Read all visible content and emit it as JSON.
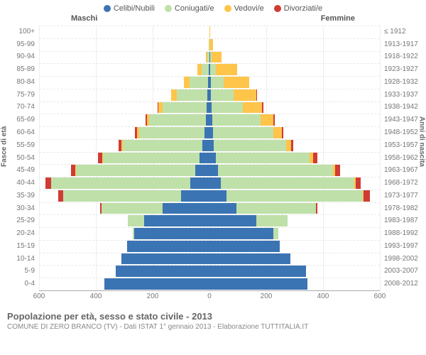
{
  "legend": [
    {
      "label": "Celibi/Nubili",
      "color": "#3b74b3"
    },
    {
      "label": "Coniugati/e",
      "color": "#bfe0a8"
    },
    {
      "label": "Vedovi/e",
      "color": "#ffc54a"
    },
    {
      "label": "Divorziati/e",
      "color": "#d03b33"
    }
  ],
  "header": {
    "maschi": "Maschi",
    "femmine": "Femmine"
  },
  "axisTitles": {
    "left": "Fasce di età",
    "right": "Anni di nascita"
  },
  "footer": {
    "title": "Popolazione per età, sesso e stato civile - 2013",
    "sub": "COMUNE DI ZERO BRANCO (TV) - Dati ISTAT 1° gennaio 2013 - Elaborazione TUTTITALIA.IT"
  },
  "xAxis": {
    "max": 600,
    "ticks": [
      600,
      400,
      200,
      0,
      200,
      400,
      600
    ]
  },
  "ageGroups": [
    "0-4",
    "5-9",
    "10-14",
    "15-19",
    "20-24",
    "25-29",
    "30-34",
    "35-39",
    "40-44",
    "45-49",
    "50-54",
    "55-59",
    "60-64",
    "65-69",
    "70-74",
    "75-79",
    "80-84",
    "85-89",
    "90-94",
    "95-99",
    "100+"
  ],
  "birthYears": [
    "2008-2012",
    "2003-2007",
    "1998-2002",
    "1993-1997",
    "1988-1992",
    "1983-1987",
    "1978-1982",
    "1973-1977",
    "1968-1972",
    "1963-1967",
    "1958-1962",
    "1953-1957",
    "1948-1952",
    "1943-1947",
    "1938-1942",
    "1933-1937",
    "1928-1932",
    "1923-1927",
    "1918-1922",
    "1913-1917",
    "≤ 1912"
  ],
  "rows": [
    {
      "m": {
        "c": 370,
        "co": 0,
        "v": 0,
        "d": 0
      },
      "f": {
        "c": 345,
        "co": 0,
        "v": 0,
        "d": 0
      }
    },
    {
      "m": {
        "c": 330,
        "co": 0,
        "v": 0,
        "d": 0
      },
      "f": {
        "c": 340,
        "co": 0,
        "v": 0,
        "d": 0
      }
    },
    {
      "m": {
        "c": 310,
        "co": 0,
        "v": 0,
        "d": 0
      },
      "f": {
        "c": 285,
        "co": 0,
        "v": 0,
        "d": 0
      }
    },
    {
      "m": {
        "c": 290,
        "co": 0,
        "v": 0,
        "d": 0
      },
      "f": {
        "c": 248,
        "co": 0,
        "v": 0,
        "d": 0
      }
    },
    {
      "m": {
        "c": 265,
        "co": 6,
        "v": 0,
        "d": 0
      },
      "f": {
        "c": 225,
        "co": 18,
        "v": 0,
        "d": 0
      }
    },
    {
      "m": {
        "c": 230,
        "co": 58,
        "v": 0,
        "d": 0
      },
      "f": {
        "c": 165,
        "co": 110,
        "v": 0,
        "d": 0
      }
    },
    {
      "m": {
        "c": 165,
        "co": 215,
        "v": 0,
        "d": 5
      },
      "f": {
        "c": 95,
        "co": 280,
        "v": 0,
        "d": 5
      }
    },
    {
      "m": {
        "c": 100,
        "co": 415,
        "v": 0,
        "d": 18
      },
      "f": {
        "c": 60,
        "co": 480,
        "v": 2,
        "d": 22
      }
    },
    {
      "m": {
        "c": 68,
        "co": 490,
        "v": 0,
        "d": 20
      },
      "f": {
        "c": 40,
        "co": 470,
        "v": 5,
        "d": 18
      }
    },
    {
      "m": {
        "c": 50,
        "co": 420,
        "v": 2,
        "d": 15
      },
      "f": {
        "c": 30,
        "co": 405,
        "v": 8,
        "d": 18
      }
    },
    {
      "m": {
        "c": 35,
        "co": 340,
        "v": 3,
        "d": 14
      },
      "f": {
        "c": 22,
        "co": 330,
        "v": 12,
        "d": 15
      }
    },
    {
      "m": {
        "c": 25,
        "co": 280,
        "v": 5,
        "d": 10
      },
      "f": {
        "c": 15,
        "co": 255,
        "v": 18,
        "d": 8
      }
    },
    {
      "m": {
        "c": 18,
        "co": 230,
        "v": 6,
        "d": 8
      },
      "f": {
        "c": 12,
        "co": 213,
        "v": 30,
        "d": 6
      }
    },
    {
      "m": {
        "c": 12,
        "co": 200,
        "v": 8,
        "d": 5
      },
      "f": {
        "c": 10,
        "co": 170,
        "v": 45,
        "d": 4
      }
    },
    {
      "m": {
        "c": 10,
        "co": 155,
        "v": 14,
        "d": 3
      },
      "f": {
        "c": 8,
        "co": 110,
        "v": 68,
        "d": 3
      }
    },
    {
      "m": {
        "c": 8,
        "co": 108,
        "v": 18,
        "d": 2
      },
      "f": {
        "c": 6,
        "co": 78,
        "v": 82,
        "d": 2
      }
    },
    {
      "m": {
        "c": 5,
        "co": 65,
        "v": 20,
        "d": 0
      },
      "f": {
        "c": 4,
        "co": 45,
        "v": 90,
        "d": 0
      }
    },
    {
      "m": {
        "c": 3,
        "co": 25,
        "v": 14,
        "d": 0
      },
      "f": {
        "c": 3,
        "co": 20,
        "v": 75,
        "d": 0
      }
    },
    {
      "m": {
        "c": 1,
        "co": 6,
        "v": 6,
        "d": 0
      },
      "f": {
        "c": 2,
        "co": 5,
        "v": 35,
        "d": 0
      }
    },
    {
      "m": {
        "c": 0,
        "co": 1,
        "v": 2,
        "d": 0
      },
      "f": {
        "c": 1,
        "co": 1,
        "v": 10,
        "d": 0
      }
    },
    {
      "m": {
        "c": 0,
        "co": 0,
        "v": 0,
        "d": 0
      },
      "f": {
        "c": 0,
        "co": 0,
        "v": 2,
        "d": 0
      }
    }
  ],
  "colors": {
    "c": "#3b74b3",
    "co": "#bfe0a8",
    "v": "#ffc54a",
    "d": "#d03b33"
  }
}
